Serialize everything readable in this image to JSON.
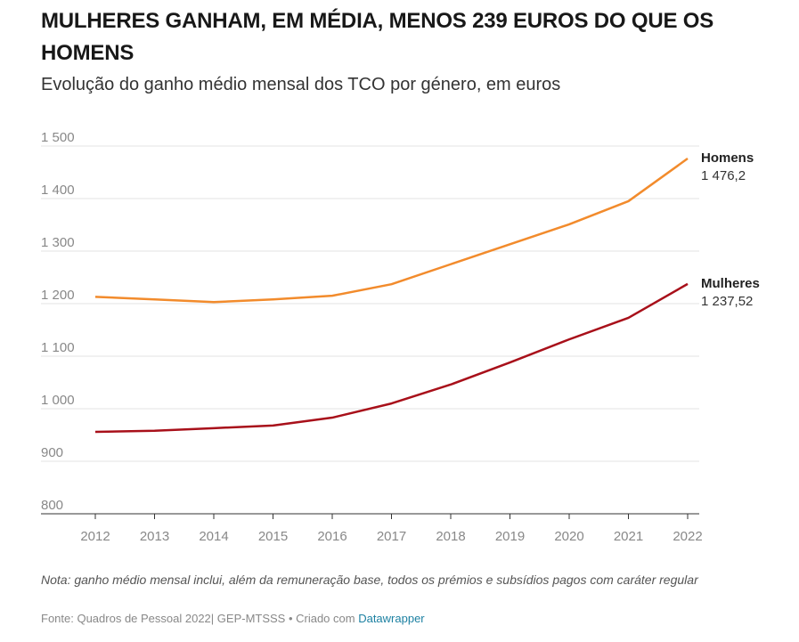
{
  "header": {
    "title": "MULHERES GANHAM, EM MÉDIA, MENOS 239 EUROS DO QUE OS HOMENS",
    "subtitle": "Evolução do ganho médio mensal dos TCO por género, em euros"
  },
  "chart_data": {
    "type": "line",
    "title": "MULHERES GANHAM, EM MÉDIA, MENOS 239 EUROS DO QUE OS HOMENS",
    "x": [
      2012,
      2013,
      2014,
      2015,
      2016,
      2017,
      2018,
      2019,
      2020,
      2021,
      2022
    ],
    "ylim": [
      800,
      1500
    ],
    "yticks": [
      800,
      900,
      1000,
      1100,
      1200,
      1300,
      1400,
      1500
    ],
    "ytick_labels": [
      "800",
      "900",
      "1 000",
      "1 100",
      "1 200",
      "1 300",
      "1 400",
      "1 500"
    ],
    "grid": true,
    "series": [
      {
        "name": "Homens",
        "color": "#f28b2c",
        "end_label": "1 476,2",
        "values": [
          1213,
          1208,
          1203,
          1208,
          1215,
          1237,
          1275,
          1313,
          1351,
          1395,
          1476.2
        ]
      },
      {
        "name": "Mulheres",
        "color": "#a8101a",
        "end_label": "1 237,52",
        "values": [
          956,
          958,
          963,
          968,
          983,
          1010,
          1046,
          1088,
          1132,
          1173,
          1237.52
        ]
      }
    ]
  },
  "footer": {
    "note": "Nota: ganho médio mensal inclui, além da remuneração base, todos os prémios e subsídios pagos com caráter regular",
    "source": "Fonte: Quadros de Pessoal 2022| GEP-MTSSS  • Criado com ",
    "credit": "Datawrapper"
  }
}
